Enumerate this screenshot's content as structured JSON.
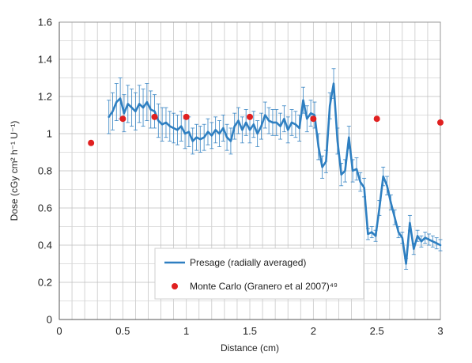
{
  "chart_data": {
    "type": "line",
    "xlabel": "Distance (cm)",
    "ylabel": "Dose (cGy cm² h⁻¹ U⁻¹)",
    "xlim": [
      0,
      3
    ],
    "ylim": [
      0,
      1.6
    ],
    "x_ticks": [
      "0",
      "0.5",
      "1",
      "1.5",
      "2",
      "2.5",
      "3"
    ],
    "y_ticks": [
      "0",
      "0.2",
      "0.4",
      "0.6",
      "0.8",
      "1",
      "1.2",
      "1.4",
      "1.6"
    ],
    "grid": true,
    "legend_position": "bottom-center",
    "series": [
      {
        "name": "Presage (radially averaged)",
        "color": "#2e7fc1",
        "marker": "line-with-error-bars",
        "x": [
          0.39,
          0.42,
          0.45,
          0.48,
          0.51,
          0.54,
          0.57,
          0.6,
          0.63,
          0.66,
          0.69,
          0.72,
          0.75,
          0.78,
          0.81,
          0.84,
          0.87,
          0.9,
          0.93,
          0.96,
          0.99,
          1.02,
          1.05,
          1.08,
          1.11,
          1.14,
          1.17,
          1.2,
          1.23,
          1.26,
          1.29,
          1.32,
          1.35,
          1.38,
          1.41,
          1.44,
          1.47,
          1.5,
          1.53,
          1.56,
          1.59,
          1.62,
          1.65,
          1.68,
          1.71,
          1.74,
          1.77,
          1.8,
          1.83,
          1.86,
          1.89,
          1.92,
          1.95,
          1.98,
          2.01,
          2.04,
          2.07,
          2.1,
          2.13,
          2.16,
          2.19,
          2.22,
          2.25,
          2.28,
          2.31,
          2.34,
          2.37,
          2.4,
          2.43,
          2.46,
          2.49,
          2.52,
          2.55,
          2.58,
          2.61,
          2.64,
          2.67,
          2.7,
          2.73,
          2.76,
          2.79,
          2.82,
          2.85,
          2.88,
          2.91,
          2.94,
          2.97,
          3.0
        ],
        "y": [
          1.09,
          1.12,
          1.17,
          1.19,
          1.11,
          1.16,
          1.14,
          1.12,
          1.16,
          1.14,
          1.17,
          1.13,
          1.12,
          1.07,
          1.05,
          1.06,
          1.04,
          1.03,
          1.02,
          1.04,
          1.0,
          1.01,
          0.96,
          0.98,
          0.97,
          0.98,
          1.01,
          0.99,
          1.02,
          1.0,
          1.03,
          0.98,
          0.96,
          1.04,
          1.07,
          1.02,
          1.06,
          1.02,
          1.05,
          1.0,
          1.04,
          1.1,
          1.07,
          1.06,
          1.06,
          1.04,
          1.08,
          1.02,
          1.06,
          1.05,
          1.03,
          1.18,
          1.08,
          1.11,
          1.1,
          0.93,
          0.82,
          0.85,
          1.15,
          1.27,
          0.96,
          0.78,
          0.8,
          0.98,
          0.8,
          0.81,
          0.74,
          0.71,
          0.46,
          0.47,
          0.45,
          0.6,
          0.77,
          0.72,
          0.63,
          0.55,
          0.47,
          0.44,
          0.3,
          0.52,
          0.38,
          0.45,
          0.42,
          0.44,
          0.43,
          0.42,
          0.41,
          0.4
        ],
        "error": [
          0.09,
          0.1,
          0.1,
          0.11,
          0.1,
          0.1,
          0.1,
          0.1,
          0.1,
          0.1,
          0.1,
          0.1,
          0.09,
          0.09,
          0.09,
          0.08,
          0.08,
          0.08,
          0.08,
          0.08,
          0.08,
          0.08,
          0.07,
          0.07,
          0.07,
          0.07,
          0.07,
          0.07,
          0.07,
          0.07,
          0.07,
          0.07,
          0.07,
          0.07,
          0.07,
          0.07,
          0.07,
          0.07,
          0.07,
          0.07,
          0.07,
          0.07,
          0.07,
          0.07,
          0.07,
          0.07,
          0.07,
          0.07,
          0.07,
          0.07,
          0.07,
          0.07,
          0.07,
          0.07,
          0.07,
          0.07,
          0.06,
          0.06,
          0.07,
          0.08,
          0.07,
          0.06,
          0.06,
          0.06,
          0.06,
          0.06,
          0.05,
          0.05,
          0.03,
          0.03,
          0.03,
          0.04,
          0.05,
          0.05,
          0.04,
          0.04,
          0.03,
          0.03,
          0.03,
          0.04,
          0.03,
          0.03,
          0.03,
          0.03,
          0.03,
          0.03,
          0.03,
          0.03
        ]
      },
      {
        "name": "Monte Carlo (Granero et al 2007)⁴⁹",
        "color": "#e02020",
        "marker": "circle",
        "x": [
          0.25,
          0.5,
          0.75,
          1.0,
          1.5,
          2.0,
          2.5,
          3.0
        ],
        "y": [
          0.95,
          1.08,
          1.09,
          1.09,
          1.09,
          1.08,
          1.08,
          1.06
        ]
      }
    ]
  }
}
